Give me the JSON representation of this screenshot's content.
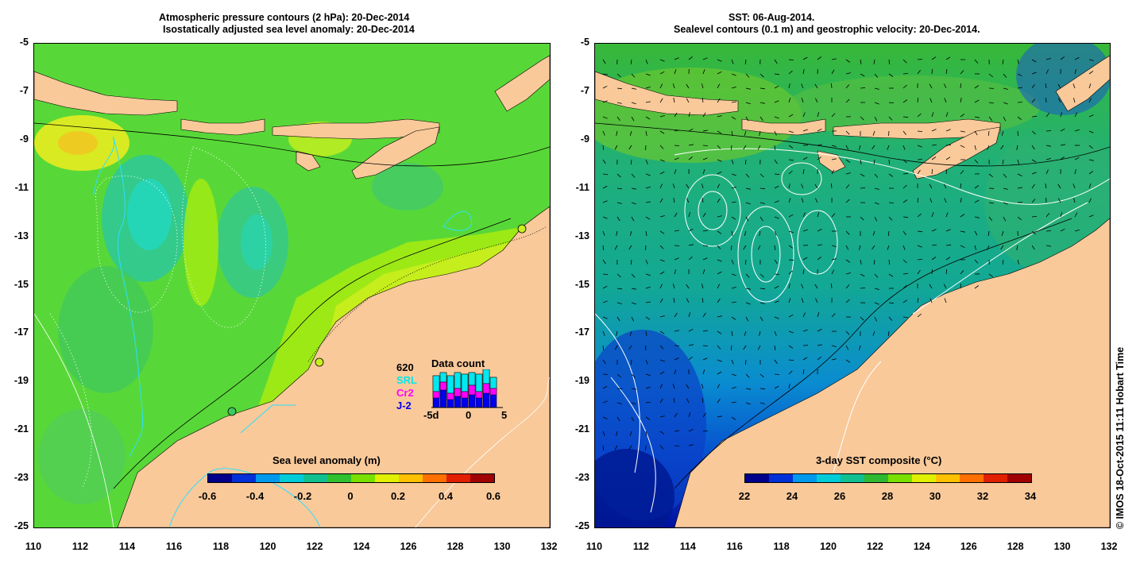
{
  "left_panel": {
    "title_line1": "Atmospheric pressure contours (2 hPa): 20-Dec-2014",
    "title_line2": "Isostatically adjusted sea level anomaly: 20-Dec-2014",
    "colorbar_title": "Sea level anomaly (m)",
    "colorbar_ticks": [
      "-0.6",
      "-0.4",
      "-0.2",
      "0",
      "0.2",
      "0.4",
      "0.6"
    ],
    "colorbar_colors": [
      "#00008b",
      "#0030d8",
      "#0099ee",
      "#00ccd8",
      "#10c090",
      "#30c030",
      "#7ae000",
      "#e0f000",
      "#ffc000",
      "#ff7000",
      "#e02000",
      "#a00000"
    ]
  },
  "right_panel": {
    "title_line1": "SST: 06-Aug-2014.",
    "title_line2": "Sealevel contours (0.1 m) and geostrophic velocity: 20-Dec-2014.",
    "colorbar_title": "3-day SST composite (°C)",
    "colorbar_ticks": [
      "22",
      "24",
      "26",
      "28",
      "30",
      "32",
      "34"
    ],
    "colorbar_colors": [
      "#00008b",
      "#0030d8",
      "#0099ee",
      "#00ccd8",
      "#10c090",
      "#30b830",
      "#7ae000",
      "#e0f000",
      "#ffc000",
      "#ff7000",
      "#e02000",
      "#a00000"
    ]
  },
  "axes": {
    "y_ticks": [
      "-5",
      "-7",
      "-9",
      "-11",
      "-13",
      "-15",
      "-17",
      "-19",
      "-21",
      "-23",
      "-25"
    ],
    "x_ticks": [
      "110",
      "112",
      "114",
      "116",
      "118",
      "120",
      "122",
      "124",
      "126",
      "128",
      "130",
      "132"
    ]
  },
  "data_count": {
    "title": "Data count",
    "total": "620",
    "series": [
      {
        "name": "SRL",
        "color": "#00e8f0"
      },
      {
        "name": "Cr2",
        "color": "#ff00ff"
      },
      {
        "name": "J-2",
        "color": "#0000ee"
      }
    ],
    "x_labels": [
      "-5d",
      "0",
      "5"
    ]
  },
  "credit": "© IMOS 18-Oct-2015 11:11 Hobart Time",
  "colors": {
    "land": "#f9c99a",
    "sea_base_left": "#58d838",
    "sea_base_right": "#20b080"
  }
}
